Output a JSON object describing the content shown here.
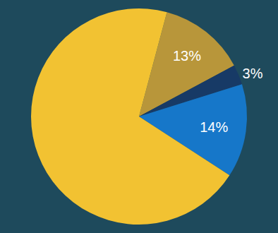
{
  "chart_data": {
    "type": "pie",
    "values": [
      13,
      3,
      14,
      70
    ],
    "value_labels": [
      "13%",
      "3%",
      "14%",
      null
    ],
    "colors": [
      "#b8963a",
      "#173a66",
      "#1677c9",
      "#f2c232"
    ],
    "data_labels": true
  }
}
